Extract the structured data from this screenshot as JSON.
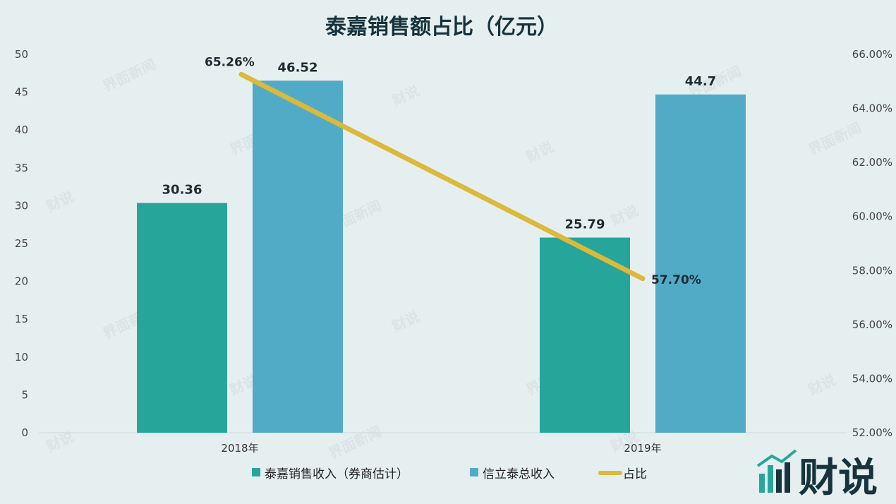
{
  "chart_data": {
    "type": "bar",
    "title": "泰嘉销售额占比（亿元）",
    "categories": [
      "2018年",
      "2019年"
    ],
    "series": [
      {
        "name": "泰嘉销售收入（券商估计）",
        "type": "bar",
        "axis": "left",
        "color": "#26a69a",
        "values": [
          30.36,
          25.79
        ],
        "labels": [
          "30.36",
          "25.79"
        ]
      },
      {
        "name": "信立泰总收入",
        "type": "bar",
        "axis": "left",
        "color": "#52abc6",
        "values": [
          46.52,
          44.7
        ],
        "labels": [
          "46.52",
          "44.7"
        ]
      },
      {
        "name": "占比",
        "type": "line",
        "axis": "right",
        "color": "#dcb93b",
        "values": [
          65.26,
          57.7
        ],
        "labels": [
          "65.26%",
          "57.70%"
        ]
      }
    ],
    "y_left": {
      "min": 0,
      "max": 50,
      "step": 5,
      "ticks": [
        "0",
        "5",
        "10",
        "15",
        "20",
        "25",
        "30",
        "35",
        "40",
        "45",
        "50"
      ]
    },
    "y_right": {
      "min": 52,
      "max": 66,
      "step": 2,
      "ticks": [
        "52.00%",
        "54.00%",
        "56.00%",
        "58.00%",
        "60.00%",
        "62.00%",
        "64.00%",
        "66.00%"
      ]
    },
    "grid": false,
    "legend_position": "bottom"
  },
  "branding": {
    "logo_text": "财说",
    "watermarks": [
      "界面新闻",
      "财说"
    ]
  }
}
